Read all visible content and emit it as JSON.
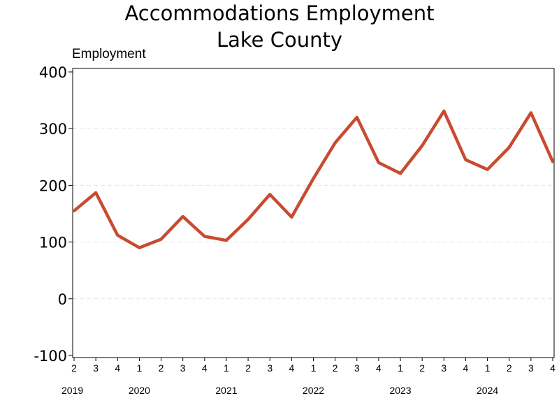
{
  "chart_data": {
    "type": "line",
    "title": "Accommodations Employment",
    "subtitle": "Lake County",
    "ylabel": "Employment",
    "xlabel": "",
    "ylim": [
      -100,
      400
    ],
    "yticks": [
      -100,
      0,
      100,
      200,
      300,
      400
    ],
    "grid": true,
    "x": [
      "2019 Q2",
      "2019 Q3",
      "2019 Q4",
      "2020 Q1",
      "2020 Q2",
      "2020 Q3",
      "2020 Q4",
      "2021 Q1",
      "2021 Q2",
      "2021 Q3",
      "2021 Q4",
      "2022 Q1",
      "2022 Q2",
      "2022 Q3",
      "2022 Q4",
      "2023 Q1",
      "2023 Q2",
      "2023 Q3",
      "2023 Q4",
      "2024 Q1",
      "2024 Q2",
      "2024 Q3",
      "2024 Q4"
    ],
    "quarter_labels": [
      "2",
      "3",
      "4",
      "1",
      "2",
      "3",
      "4",
      "1",
      "2",
      "3",
      "4",
      "1",
      "2",
      "3",
      "4",
      "1",
      "2",
      "3",
      "4",
      "1",
      "2",
      "3",
      "4"
    ],
    "year_labels": [
      {
        "label": "2019",
        "index": 0
      },
      {
        "label": "2020",
        "index": 3
      },
      {
        "label": "2021",
        "index": 7
      },
      {
        "label": "2022",
        "index": 11
      },
      {
        "label": "2023",
        "index": 15
      },
      {
        "label": "2024",
        "index": 19
      }
    ],
    "series": [
      {
        "values": [
          155,
          187,
          112,
          90,
          105,
          145,
          110,
          103,
          140,
          184,
          144,
          212,
          275,
          320,
          240,
          221,
          270,
          331,
          245,
          228,
          267,
          328,
          242
        ],
        "color": "#C84B31"
      }
    ]
  }
}
